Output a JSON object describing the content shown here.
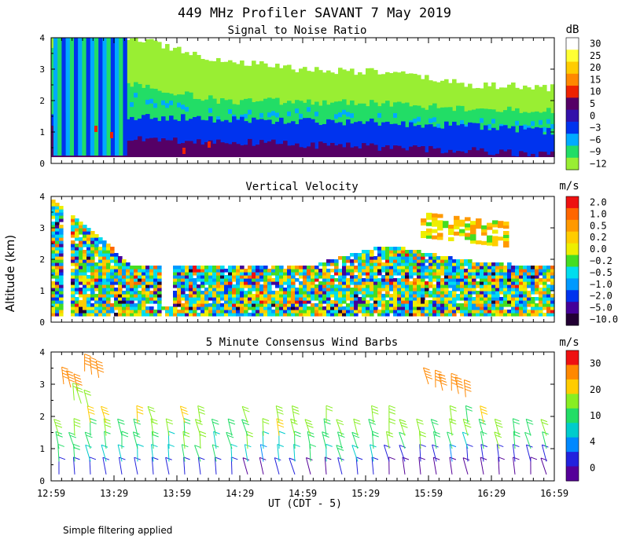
{
  "figure": {
    "title": "449 MHz Profiler SAVANT  7 May 2019",
    "ylabel": "Altitude (km)",
    "xlabel": "UT  (CDT - 5)",
    "footnote": "Simple filtering applied"
  },
  "chart_data": [
    {
      "type": "heatmap",
      "title": "Signal to Noise Ratio",
      "colorbar_unit": "dB",
      "colorbar_levels": [
        "30",
        "25",
        "20",
        "15",
        "10",
        "5",
        "0",
        "−3",
        "−6",
        "−9",
        "−12"
      ],
      "colorbar_colors": [
        "#ffffff",
        "#ffff33",
        "#ffcc00",
        "#ff8800",
        "#ee2200",
        "#550066",
        "#3311aa",
        "#0033ee",
        "#00aaff",
        "#22dd66",
        "#99ee33"
      ],
      "ylim": [
        0,
        4
      ],
      "yticks": [
        0,
        1,
        2,
        3,
        4
      ],
      "xlim": [
        "12:59",
        "16:59"
      ],
      "xticks": [
        "12:59",
        "13:29",
        "13:59",
        "14:29",
        "14:59",
        "15:29",
        "15:59",
        "16:29",
        "16:59"
      ],
      "layers": [
        {
          "label": "-12",
          "bottom_km": [
            0.3,
            0.2,
            0.25,
            0.3,
            0.2,
            0.3,
            0.2
          ],
          "top_km": [
            4.0,
            4.0,
            3.3,
            3.0,
            2.9,
            2.5,
            2.4
          ]
        },
        {
          "label": "-6",
          "bottom_km": [
            0.2,
            0.2,
            0.2,
            0.2,
            0.2,
            0.2,
            0.2
          ],
          "top_km": [
            3.8,
            2.5,
            2.0,
            1.95,
            1.9,
            1.75,
            1.7
          ]
        },
        {
          "label": "0",
          "bottom_km": [
            0.2,
            0.2,
            0.2,
            0.2,
            0.2,
            0.2,
            0.2
          ],
          "top_km": [
            1.6,
            1.5,
            1.4,
            1.35,
            1.3,
            1.2,
            1.0
          ]
        },
        {
          "label": "5",
          "bottom_km": [
            0.2,
            0.2,
            0.2,
            0.2,
            0.2,
            0.2,
            0.2
          ],
          "top_km": [
            1.1,
            0.8,
            0.7,
            0.6,
            0.5,
            0.4,
            0.3
          ]
        }
      ]
    },
    {
      "type": "heatmap",
      "title": "Vertical Velocity",
      "colorbar_unit": "m/s",
      "colorbar_levels": [
        "2.0",
        "1.0",
        "0.5",
        "0.2",
        "0.0",
        "−0.2",
        "−0.5",
        "−1.0",
        "−2.0",
        "−5.0",
        "−10.0"
      ],
      "colorbar_colors": [
        "#ee1111",
        "#ff6600",
        "#ff9900",
        "#ffcc00",
        "#eeee00",
        "#44dd22",
        "#00ddee",
        "#0099ff",
        "#0033ee",
        "#440099",
        "#220033"
      ],
      "ylim": [
        0,
        4
      ],
      "yticks": [
        0,
        1,
        2,
        3,
        4
      ],
      "valid_region_km": {
        "bottom": 0.2,
        "top": [
          4.0,
          1.8,
          1.8,
          1.8,
          2.5,
          2.0,
          1.8
        ],
        "upper_layer": [
          3.0,
          3.8
        ]
      }
    },
    {
      "type": "scatter",
      "title": "5 Minute Consensus Wind Barbs",
      "colorbar_unit": "m/s",
      "colorbar_levels": [
        "30",
        "20",
        "10",
        "4",
        "0"
      ],
      "colorbar_colors": [
        "#ee1111",
        "#ff8800",
        "#ffcc00",
        "#88ee22",
        "#22dd66",
        "#00cccc",
        "#0088ff",
        "#2222dd",
        "#550099"
      ],
      "ylim": [
        0,
        4
      ],
      "yticks": [
        0,
        1,
        2,
        3,
        4
      ],
      "barb_levels_km": [
        0.2,
        0.6,
        1.0,
        1.4,
        1.8
      ],
      "barb_speed_profile_ms": [
        2,
        6,
        9,
        11,
        13
      ],
      "upper_barbs": [
        {
          "time": "13:05",
          "alt_km": 3.0,
          "speed_ms": 20
        },
        {
          "time": "13:15",
          "alt_km": 3.4,
          "speed_ms": 20
        },
        {
          "time": "13:10",
          "alt_km": 2.5,
          "speed_ms": 12
        },
        {
          "time": "15:59",
          "alt_km": 3.0,
          "speed_ms": 20
        },
        {
          "time": "16:10",
          "alt_km": 2.8,
          "speed_ms": 20
        }
      ]
    }
  ]
}
